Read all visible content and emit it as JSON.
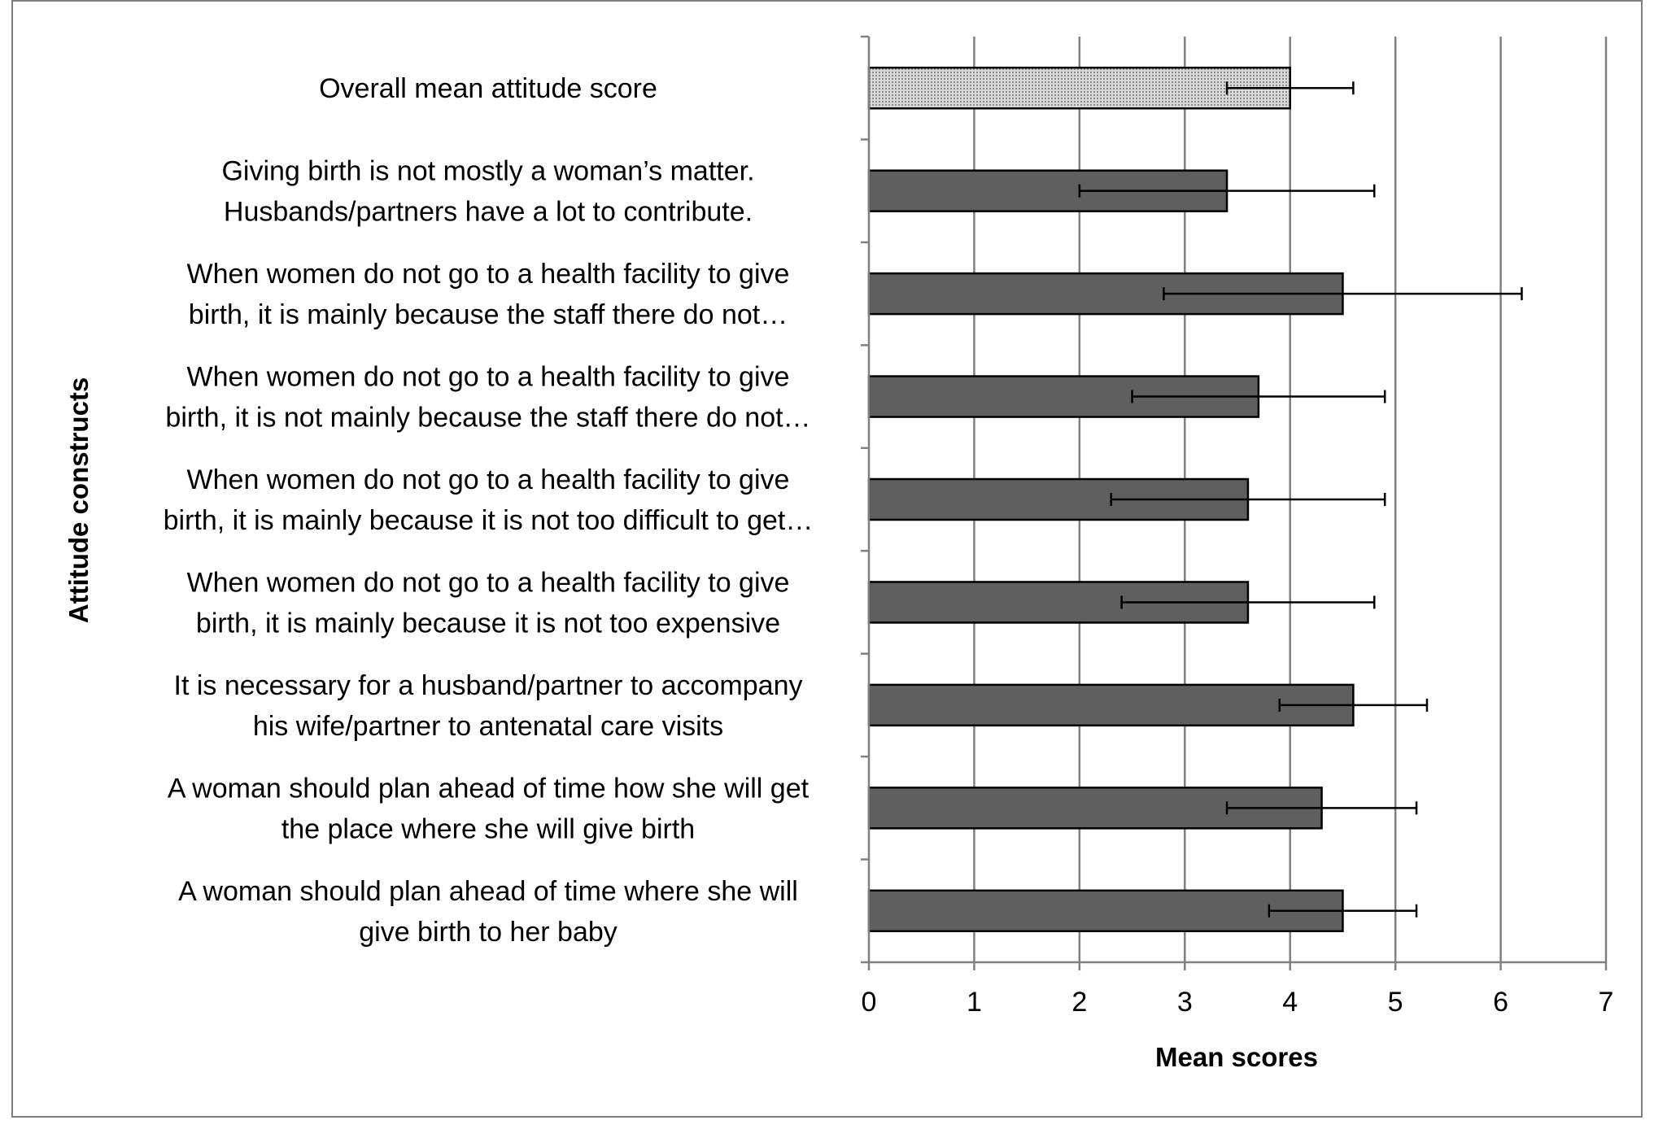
{
  "chart_data": {
    "type": "bar",
    "orientation": "horizontal",
    "xlabel": "Mean scores",
    "ylabel": "Attitude constructs",
    "xlim": [
      0,
      7
    ],
    "xticks": [
      "0",
      "1",
      "2",
      "3",
      "4",
      "5",
      "6",
      "7"
    ],
    "grid": "vertical",
    "colors": {
      "bar": "#5f5f5f",
      "overall_bar": "#c8c8c8",
      "edge": "#000000",
      "grid": "#808080"
    },
    "categories": [
      {
        "lines": [
          "Overall mean attitude score"
        ],
        "value": 4.0,
        "error": [
          3.4,
          4.6
        ],
        "style": "dotted"
      },
      {
        "lines": [
          "Giving birth is not mostly a woman’s matter.",
          "Husbands/partners have a lot to contribute."
        ],
        "value": 3.4,
        "error": [
          2.0,
          4.8
        ],
        "style": "solid"
      },
      {
        "lines": [
          "When women do not go to a health facility to give",
          "birth, it is mainly because the staff there do not…"
        ],
        "value": 4.5,
        "error": [
          2.8,
          6.2
        ],
        "style": "solid"
      },
      {
        "lines": [
          "When women do not go to a health facility to give",
          "birth, it is not mainly because the staff there do not…"
        ],
        "value": 3.7,
        "error": [
          2.5,
          4.9
        ],
        "style": "solid"
      },
      {
        "lines": [
          "When women do not go to a health facility to give",
          "birth, it is mainly because it is not too difficult to get…"
        ],
        "value": 3.6,
        "error": [
          2.3,
          4.9
        ],
        "style": "solid"
      },
      {
        "lines": [
          "When women do not go to a health facility to give",
          "birth, it is mainly because it is not too expensive"
        ],
        "value": 3.6,
        "error": [
          2.4,
          4.8
        ],
        "style": "solid"
      },
      {
        "lines": [
          "It is necessary for a husband/partner to accompany",
          "his wife/partner to antenatal care visits"
        ],
        "value": 4.6,
        "error": [
          3.9,
          5.3
        ],
        "style": "solid"
      },
      {
        "lines": [
          "A woman should plan ahead of time how she will get",
          "the place where she will give birth"
        ],
        "value": 4.3,
        "error": [
          3.4,
          5.2
        ],
        "style": "solid"
      },
      {
        "lines": [
          "A woman should plan ahead of time where she will",
          "give birth to her baby"
        ],
        "value": 4.5,
        "error": [
          3.8,
          5.2
        ],
        "style": "solid"
      }
    ]
  }
}
